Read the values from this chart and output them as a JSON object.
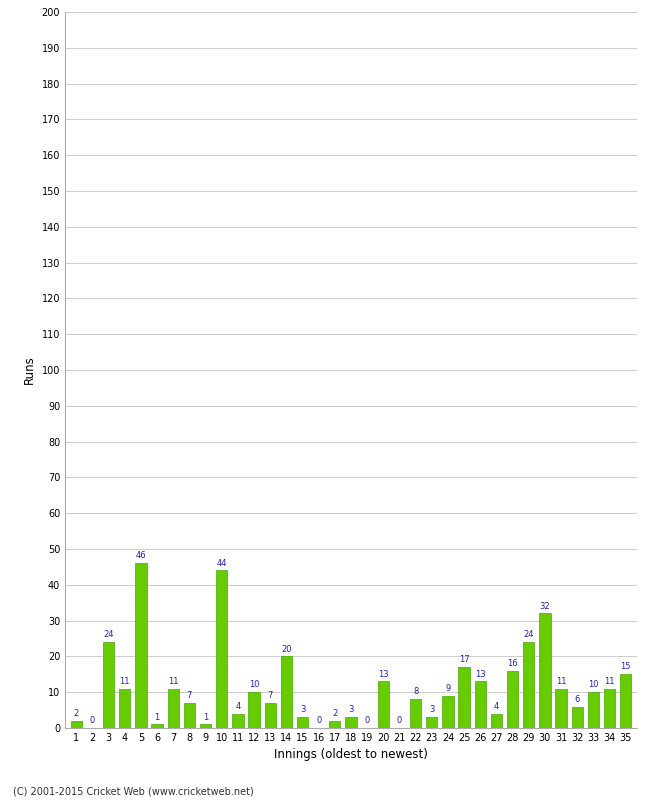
{
  "innings": [
    1,
    2,
    3,
    4,
    5,
    6,
    7,
    8,
    9,
    10,
    11,
    12,
    13,
    14,
    15,
    16,
    17,
    18,
    19,
    20,
    21,
    22,
    23,
    24,
    25,
    26,
    27,
    28,
    29,
    30,
    31,
    32,
    33,
    34,
    35
  ],
  "values": [
    2,
    0,
    24,
    11,
    46,
    1,
    11,
    7,
    1,
    44,
    4,
    10,
    7,
    20,
    3,
    0,
    2,
    3,
    0,
    13,
    0,
    8,
    3,
    9,
    17,
    13,
    4,
    16,
    24,
    32,
    11,
    6,
    10,
    11,
    15
  ],
  "bar_color": "#66cc00",
  "bar_edge_color": "#44aa00",
  "label_color": "#2222aa",
  "xlabel": "Innings (oldest to newest)",
  "ylabel": "Runs",
  "ylim": [
    0,
    200
  ],
  "yticks": [
    0,
    10,
    20,
    30,
    40,
    50,
    60,
    70,
    80,
    90,
    100,
    110,
    120,
    130,
    140,
    150,
    160,
    170,
    180,
    190,
    200
  ],
  "background_color": "#ffffff",
  "grid_color": "#cccccc",
  "footer": "(C) 2001-2015 Cricket Web (www.cricketweb.net)"
}
